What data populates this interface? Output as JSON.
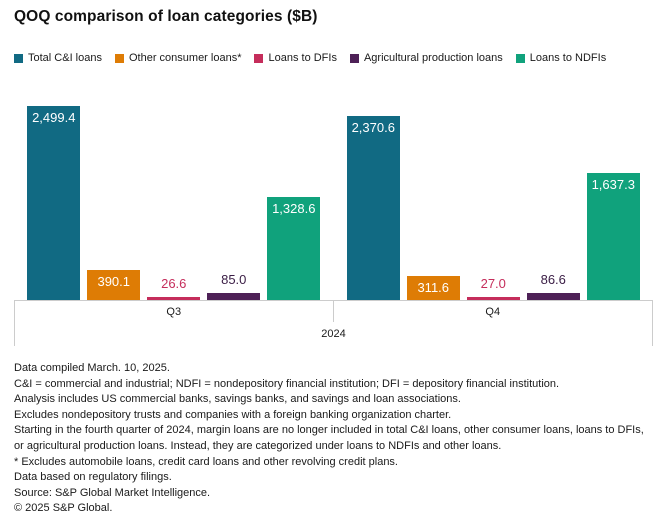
{
  "title": "QOQ comparison of loan categories ($B)",
  "colors": {
    "background": "#ffffff",
    "axis_line": "#cccccc",
    "text": "#1a1a1a",
    "teal": "#116a83",
    "orange": "#de7c05",
    "pink": "#c52d5b",
    "purple": "#4e2157",
    "green": "#10a27c"
  },
  "legend": {
    "items": [
      {
        "label": "Total C&I loans",
        "color": "#116a83"
      },
      {
        "label": "Other consumer loans*",
        "color": "#de7c05"
      },
      {
        "label": "Loans to DFIs",
        "color": "#c52d5b"
      },
      {
        "label": "Agricultural production loans",
        "color": "#4e2157"
      },
      {
        "label": "Loans to NDFIs",
        "color": "#10a27c"
      }
    ]
  },
  "chart_data": {
    "type": "bar",
    "title": "QOQ comparison of loan categories ($B)",
    "categories": [
      "Q3",
      "Q4"
    ],
    "year_label": "2024",
    "xlabel": "",
    "ylabel": "",
    "ylim": [
      0,
      2680
    ],
    "grid": false,
    "legend_position": "top",
    "value_unit": "$B",
    "series": [
      {
        "name": "Total C&I loans",
        "color": "#116a83",
        "values": [
          2499.4,
          2370.6
        ],
        "labels": [
          "2,499.4",
          "2,370.6"
        ],
        "label_position": "inside"
      },
      {
        "name": "Other consumer loans*",
        "color": "#de7c05",
        "values": [
          390.1,
          311.6
        ],
        "labels": [
          "390.1",
          "311.6"
        ],
        "label_position": "inside"
      },
      {
        "name": "Loans to DFIs",
        "color": "#c52d5b",
        "values": [
          26.6,
          27.0
        ],
        "labels": [
          "26.6",
          "27.0"
        ],
        "label_position": "above",
        "label_color": "#c52d5b"
      },
      {
        "name": "Agricultural production loans",
        "color": "#4e2157",
        "values": [
          85.0,
          86.6
        ],
        "labels": [
          "85.0",
          "86.6"
        ],
        "label_position": "above",
        "label_color": "#3a1d45"
      },
      {
        "name": "Loans to NDFIs",
        "color": "#10a27c",
        "values": [
          1328.6,
          1637.3
        ],
        "labels": [
          "1,328.6",
          "1,637.3"
        ],
        "label_position": "inside"
      }
    ]
  },
  "footnotes": [
    "Data compiled March. 10, 2025.",
    "C&I = commercial and industrial; NDFI = nondepository financial institution; DFI = depository financial institution.",
    "Analysis includes US commercial banks, savings banks, and savings and loan associations.",
    "Excludes nondepository trusts and companies with a foreign banking organization charter.",
    "Starting in the fourth quarter of 2024, margin loans are no longer included in total C&I loans, other consumer loans, loans to DFIs, or agricultural production loans. Instead, they are categorized under loans to NDFIs and other loans.",
    "* Excludes automobile loans, credit card loans and other revolving credit plans.",
    "Data based on regulatory filings.",
    "Source: S&P Global Market Intelligence.",
    "© 2025 S&P Global."
  ]
}
